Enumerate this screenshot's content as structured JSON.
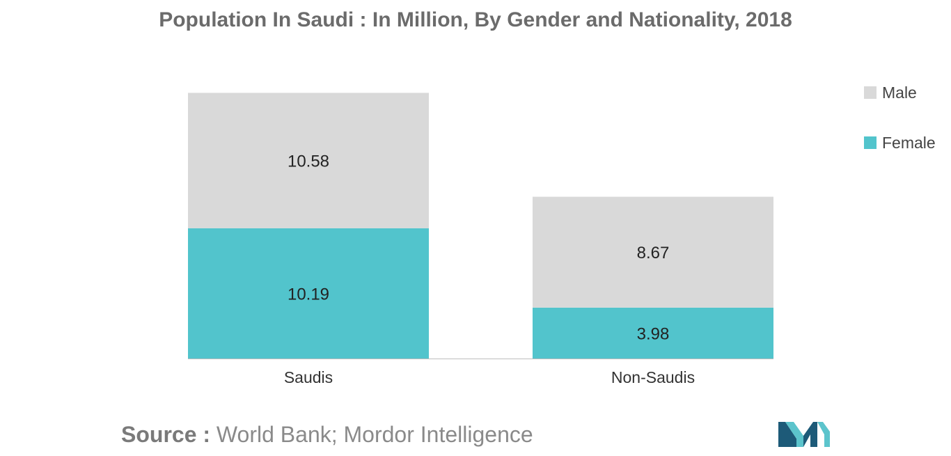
{
  "chart_data": {
    "type": "bar",
    "stacked": true,
    "title": "Population In Saudi : In Million, By Gender and Nationality, 2018",
    "categories": [
      "Saudis",
      "Non-Saudis"
    ],
    "series": [
      {
        "name": "Female",
        "values": [
          10.19,
          3.98
        ],
        "color": "#52c4cc"
      },
      {
        "name": "Male",
        "values": [
          10.58,
          8.67
        ],
        "color": "#d9d9d9"
      }
    ],
    "data_labels": [
      [
        "10.19",
        "3.98"
      ],
      [
        "10.58",
        "8.67"
      ]
    ],
    "legend": {
      "order": [
        "Male",
        "Female"
      ],
      "position": "top-right"
    },
    "xlabel": "",
    "ylabel": "",
    "ylim": [
      0,
      21.5
    ],
    "grid": false
  },
  "source": {
    "label": "Source :",
    "text": "World Bank; Mordor Intelligence"
  },
  "brand": {
    "logo_icon": "mordor-intelligence-logo-icon",
    "colors": {
      "dark": "#1d5a78",
      "light": "#5cc4cc"
    }
  }
}
